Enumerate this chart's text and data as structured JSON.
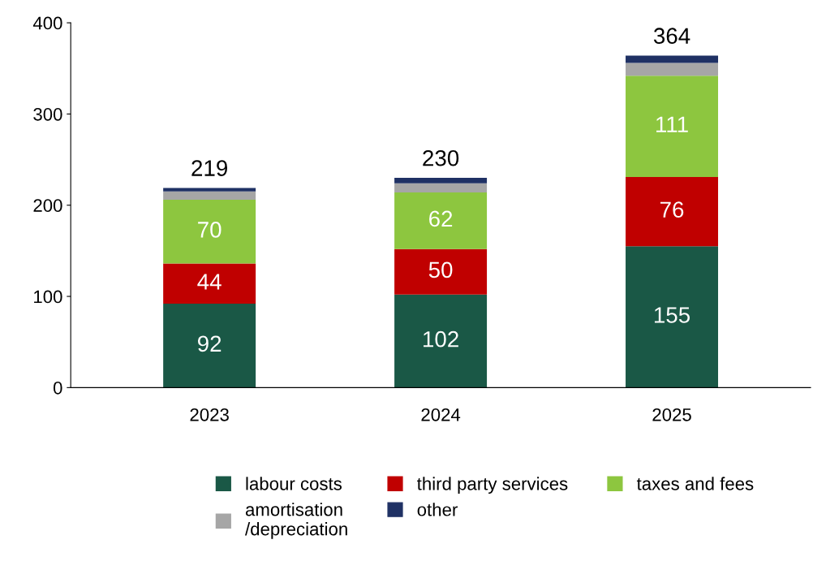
{
  "chart_data": {
    "type": "bar",
    "stacked": true,
    "categories": [
      "2023",
      "2024",
      "2025"
    ],
    "series": [
      {
        "name": "labour costs",
        "color": "#1a5846",
        "values": [
          92,
          102,
          155
        ],
        "value_labels": [
          "92",
          "102",
          "155"
        ]
      },
      {
        "name": "third party services",
        "color": "#c00000",
        "values": [
          44,
          50,
          76
        ],
        "value_labels": [
          "44",
          "50",
          "76"
        ]
      },
      {
        "name": "taxes and fees",
        "color": "#8dc63f",
        "values": [
          70,
          62,
          111
        ],
        "value_labels": [
          "70",
          "62",
          "111"
        ]
      },
      {
        "name": "amortisation\n/depreciation",
        "color": "#a6a6a6",
        "values": [
          9,
          10,
          14
        ]
      },
      {
        "name": "other",
        "color": "#1f3164",
        "values": [
          4,
          6,
          8
        ]
      }
    ],
    "totals": [
      "219",
      "230",
      "364"
    ],
    "ylim": [
      0,
      400
    ],
    "yticks": [
      0,
      100,
      200,
      300,
      400
    ],
    "grid": false,
    "legend": "bottom"
  }
}
